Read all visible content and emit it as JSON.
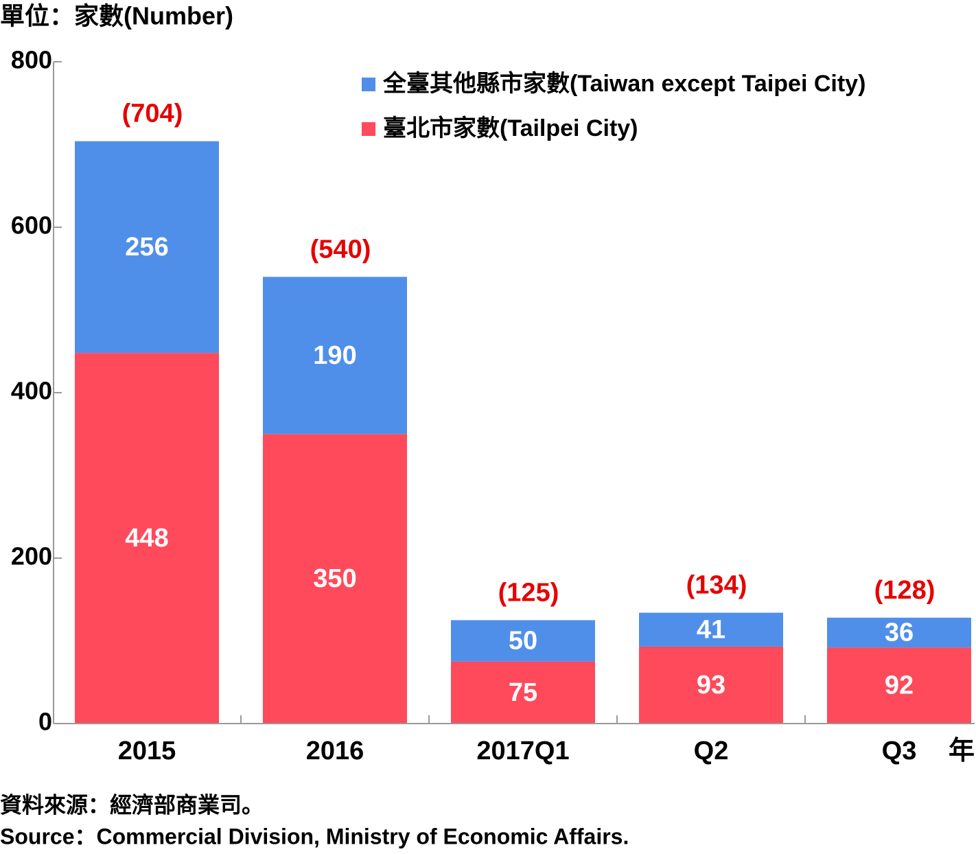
{
  "chart_data": {
    "type": "stacked_bar",
    "title": "單位：家數(Number)",
    "x_label": "年",
    "categories": [
      "2015",
      "2016",
      "2017Q1",
      "Q2",
      "Q3"
    ],
    "series": [
      {
        "name": "臺北市家數(Tailpei City)",
        "color": "#fe4a5b",
        "values": [
          448,
          350,
          75,
          93,
          92
        ]
      },
      {
        "name": "全臺其他縣市家數(Taiwan except Taipei City)",
        "color": "#4f8fea",
        "values": [
          256,
          190,
          50,
          41,
          36
        ]
      }
    ],
    "totals": {
      "values": [
        704,
        540,
        125,
        134,
        128
      ],
      "value_labels": [
        "(704)",
        "(540)",
        "(125)",
        "(134)",
        "(128)"
      ],
      "color": "#e60000"
    },
    "ylim": [
      0,
      800
    ],
    "yticks": [
      0,
      200,
      400,
      600,
      800
    ],
    "legend": "top-right",
    "source": [
      "資料來源：經濟部商業司。",
      "Source：Commercial Division, Ministry of Economic Affairs."
    ]
  }
}
